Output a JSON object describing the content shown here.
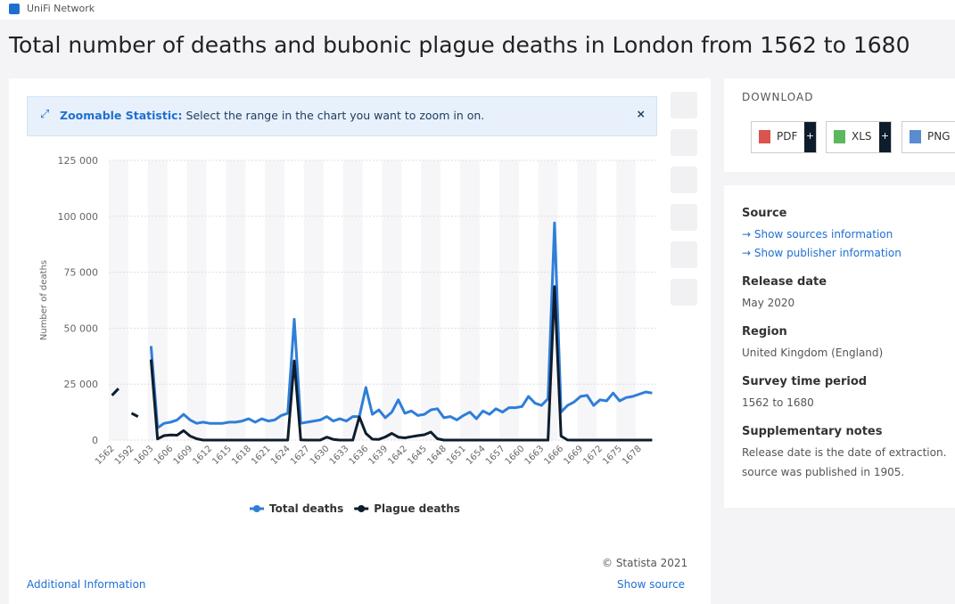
{
  "header": {
    "app": "UniFi Network",
    "title": "Total number of deaths and bubonic plague deaths in London from 1562 to 1680"
  },
  "banner": {
    "label": "Zoomable Statistic:",
    "text": "Select the range in the chart you want to zoom in on."
  },
  "chart_data": {
    "type": "line",
    "ylabel": "Number of deaths",
    "categories": [
      1562,
      null,
      null,
      1592,
      null,
      null,
      1603,
      null,
      null,
      1606,
      null,
      null,
      1609,
      null,
      null,
      1612,
      null,
      null,
      1615,
      null,
      null,
      1618,
      null,
      null,
      1621,
      null,
      null,
      1624,
      null,
      null,
      1627,
      null,
      null,
      1630,
      null,
      null,
      1633,
      null,
      null,
      1636,
      null,
      null,
      1639,
      null,
      null,
      1642,
      null,
      null,
      1645,
      null,
      null,
      1648,
      null,
      null,
      1651,
      null,
      null,
      1654,
      null,
      null,
      1657,
      null,
      null,
      1660,
      null,
      null,
      1663,
      null,
      null,
      1666,
      null,
      null,
      1669,
      null,
      null,
      1672,
      null,
      null,
      1675,
      null,
      null,
      1678,
      null,
      null
    ],
    "series": [
      {
        "name": "Total deaths",
        "color": "#2f7ed8",
        "values": [
          null,
          null,
          null,
          null,
          null,
          null,
          42000,
          5500,
          7500,
          8000,
          9000,
          11500,
          9000,
          7500,
          8000,
          7500,
          7500,
          7500,
          8000,
          8000,
          8500,
          9500,
          8000,
          9500,
          8500,
          9000,
          11000,
          12000,
          54000,
          7500,
          8000,
          8500,
          9000,
          10500,
          8500,
          9500,
          8500,
          10500,
          10500,
          23500,
          11500,
          13500,
          10000,
          12500,
          18000,
          12000,
          13000,
          11000,
          11500,
          13500,
          14000,
          10000,
          10500,
          9000,
          11000,
          12500,
          9500,
          13000,
          11500,
          14000,
          12500,
          14500,
          14500,
          15000,
          19500,
          16500,
          15500,
          18500,
          97000,
          12500,
          15500,
          17000,
          19500,
          20000,
          15500,
          18000,
          17500,
          21000,
          17500,
          19000,
          19500,
          20500,
          21500,
          21000
        ]
      },
      {
        "name": "Plague deaths",
        "color": "#0e1d2c",
        "values": [
          20000,
          23000,
          null,
          12000,
          10500,
          null,
          36000,
          500,
          2000,
          2300,
          2200,
          4200,
          1800,
          600,
          0,
          0,
          0,
          0,
          0,
          0,
          0,
          0,
          0,
          0,
          0,
          0,
          0,
          0,
          35400,
          100,
          0,
          0,
          0,
          1300,
          300,
          0,
          0,
          0,
          10400,
          3000,
          400,
          300,
          1400,
          3000,
          1300,
          1000,
          1500,
          2000,
          2400,
          3600,
          600,
          0,
          0,
          0,
          0,
          0,
          0,
          0,
          0,
          0,
          0,
          0,
          0,
          0,
          0,
          0,
          0,
          0,
          68600,
          1800,
          35,
          14,
          0,
          0,
          0,
          0,
          0,
          0,
          0,
          0,
          0,
          0,
          0,
          0
        ]
      }
    ],
    "ylim": [
      0,
      125000
    ],
    "yticks": [
      0,
      {
        "value": 25000,
        "label": "25 000"
      },
      {
        "value": 50000,
        "label": "50 000"
      },
      {
        "value": 75000,
        "label": "75 000"
      },
      {
        "value": 100000,
        "label": "100 000"
      },
      {
        "value": 125000,
        "label": "125 000"
      }
    ],
    "grid": true
  },
  "footer": {
    "copyright": "© Statista 2021",
    "additional": "Additional Information",
    "show_source": "Show source"
  },
  "download": {
    "title": "DOWNLOAD",
    "buttons": [
      "PDF",
      "XLS",
      "PNG"
    ]
  },
  "info": [
    {
      "heading": "Source",
      "links": [
        "→ Show sources information",
        "→ Show publisher information"
      ]
    },
    {
      "heading": "Release date",
      "text": "May 2020"
    },
    {
      "heading": "Region",
      "text": "United Kingdom (England)"
    },
    {
      "heading": "Survey time period",
      "text": "1562 to 1680"
    },
    {
      "heading": "Supplementary notes",
      "lines": [
        "Release date is the date of extraction.",
        "source was published in 1905."
      ]
    }
  ]
}
